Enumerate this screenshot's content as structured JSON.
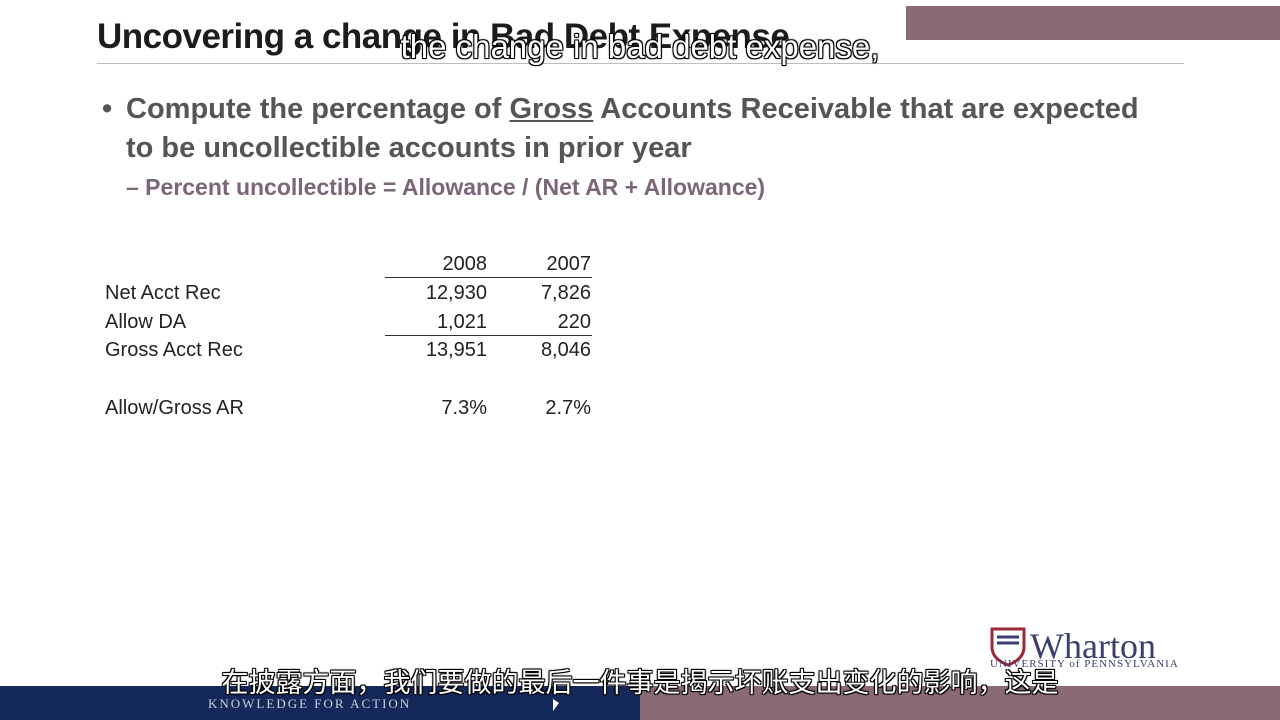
{
  "slide": {
    "title": "Uncovering a change in Bad Debt Expense",
    "bullet_pre": "Compute the percentage of ",
    "bullet_underlined": "Gross",
    "bullet_post": " Accounts Receivable that are expected to be uncollectible accounts in prior year",
    "sub_bullet": "– Percent uncollectible = Allowance / (Net AR + Allowance)"
  },
  "table": {
    "headers": [
      "2008",
      "2007"
    ],
    "rows": [
      {
        "label": "Net Acct Rec",
        "v2008": "12,930",
        "v2007": "7,826"
      },
      {
        "label": "Allow DA",
        "v2008": "1,021",
        "v2007": "220"
      },
      {
        "label": "Gross Acct Rec",
        "v2008": "13,951",
        "v2007": "8,046"
      },
      {
        "label": "Allow/Gross AR",
        "v2008": "7.3%",
        "v2007": "2.7%"
      }
    ]
  },
  "subtitles": {
    "english": "the change in bad debt expense,",
    "chinese": "在披露方面，我们要做的最后一件事是揭示坏账支出变化的影响，这是"
  },
  "branding": {
    "logo_name": "Wharton",
    "logo_sub": "UNIVERSITY of PENNSYLVANIA",
    "tagline": "KNOWLEDGE FOR ACTION"
  },
  "colors": {
    "footer_navy": "#15285a",
    "footer_mauve": "#8b6a78",
    "sub_bullet": "#7a6677"
  }
}
